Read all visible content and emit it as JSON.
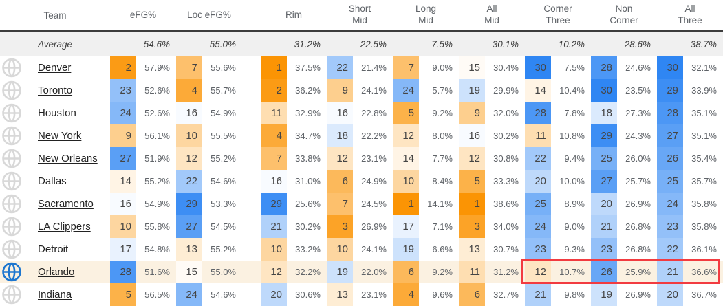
{
  "header": {
    "columns": [
      "Team",
      "eFG%",
      "Loc eFG%",
      "Rim",
      "Short\nMid",
      "Long\nMid",
      "All\nMid",
      "Corner\nThree",
      "Non\nCorner",
      "All\nThree"
    ]
  },
  "average": {
    "label": "Average",
    "values": [
      "54.6%",
      "55.0%",
      "31.2%",
      "22.5%",
      "7.5%",
      "30.1%",
      "10.2%",
      "28.6%",
      "38.7%"
    ]
  },
  "teams": [
    {
      "name": "Denver",
      "logo": "faded",
      "highlighted": false,
      "stats": [
        {
          "rank": 2,
          "pct": "57.9%"
        },
        {
          "rank": 7,
          "pct": "55.6%"
        },
        {
          "rank": 1,
          "pct": "37.5%"
        },
        {
          "rank": 22,
          "pct": "21.4%"
        },
        {
          "rank": 7,
          "pct": "9.0%"
        },
        {
          "rank": 15,
          "pct": "30.4%"
        },
        {
          "rank": 30,
          "pct": "7.5%"
        },
        {
          "rank": 28,
          "pct": "24.6%"
        },
        {
          "rank": 30,
          "pct": "32.1%"
        }
      ]
    },
    {
      "name": "Toronto",
      "logo": "faded",
      "highlighted": false,
      "stats": [
        {
          "rank": 23,
          "pct": "52.6%"
        },
        {
          "rank": 4,
          "pct": "55.7%"
        },
        {
          "rank": 2,
          "pct": "36.2%"
        },
        {
          "rank": 9,
          "pct": "24.1%"
        },
        {
          "rank": 24,
          "pct": "5.7%"
        },
        {
          "rank": 19,
          "pct": "29.9%"
        },
        {
          "rank": 14,
          "pct": "10.4%"
        },
        {
          "rank": 30,
          "pct": "23.5%"
        },
        {
          "rank": 29,
          "pct": "33.9%"
        }
      ]
    },
    {
      "name": "Houston",
      "logo": "faded",
      "highlighted": false,
      "stats": [
        {
          "rank": 24,
          "pct": "52.6%"
        },
        {
          "rank": 16,
          "pct": "54.9%"
        },
        {
          "rank": 11,
          "pct": "32.9%"
        },
        {
          "rank": 16,
          "pct": "22.8%"
        },
        {
          "rank": 5,
          "pct": "9.2%"
        },
        {
          "rank": 9,
          "pct": "32.0%"
        },
        {
          "rank": 28,
          "pct": "7.8%"
        },
        {
          "rank": 18,
          "pct": "27.3%"
        },
        {
          "rank": 28,
          "pct": "35.1%"
        }
      ]
    },
    {
      "name": "New York",
      "logo": "faded",
      "highlighted": false,
      "stats": [
        {
          "rank": 9,
          "pct": "56.1%"
        },
        {
          "rank": 10,
          "pct": "55.5%"
        },
        {
          "rank": 4,
          "pct": "34.7%"
        },
        {
          "rank": 18,
          "pct": "22.2%"
        },
        {
          "rank": 12,
          "pct": "8.0%"
        },
        {
          "rank": 16,
          "pct": "30.2%"
        },
        {
          "rank": 11,
          "pct": "10.8%"
        },
        {
          "rank": 29,
          "pct": "24.3%"
        },
        {
          "rank": 27,
          "pct": "35.1%"
        }
      ]
    },
    {
      "name": "New Orleans",
      "logo": "faded",
      "highlighted": false,
      "stats": [
        {
          "rank": 27,
          "pct": "51.9%"
        },
        {
          "rank": 12,
          "pct": "55.2%"
        },
        {
          "rank": 7,
          "pct": "33.8%"
        },
        {
          "rank": 12,
          "pct": "23.1%"
        },
        {
          "rank": 14,
          "pct": "7.7%"
        },
        {
          "rank": 12,
          "pct": "30.8%"
        },
        {
          "rank": 22,
          "pct": "9.4%"
        },
        {
          "rank": 25,
          "pct": "26.0%"
        },
        {
          "rank": 26,
          "pct": "35.4%"
        }
      ]
    },
    {
      "name": "Dallas",
      "logo": "faded",
      "highlighted": false,
      "stats": [
        {
          "rank": 14,
          "pct": "55.2%"
        },
        {
          "rank": 22,
          "pct": "54.6%"
        },
        {
          "rank": 16,
          "pct": "31.0%"
        },
        {
          "rank": 6,
          "pct": "24.9%"
        },
        {
          "rank": 10,
          "pct": "8.4%"
        },
        {
          "rank": 5,
          "pct": "33.3%"
        },
        {
          "rank": 20,
          "pct": "10.0%"
        },
        {
          "rank": 27,
          "pct": "25.7%"
        },
        {
          "rank": 25,
          "pct": "35.7%"
        }
      ]
    },
    {
      "name": "Sacramento",
      "logo": "faded",
      "highlighted": false,
      "stats": [
        {
          "rank": 16,
          "pct": "54.9%"
        },
        {
          "rank": 29,
          "pct": "53.3%"
        },
        {
          "rank": 29,
          "pct": "25.6%"
        },
        {
          "rank": 7,
          "pct": "24.5%"
        },
        {
          "rank": 1,
          "pct": "14.1%"
        },
        {
          "rank": 1,
          "pct": "38.6%"
        },
        {
          "rank": 25,
          "pct": "8.9%"
        },
        {
          "rank": 20,
          "pct": "26.9%"
        },
        {
          "rank": 24,
          "pct": "35.8%"
        }
      ]
    },
    {
      "name": "LA Clippers",
      "logo": "faded",
      "highlighted": false,
      "stats": [
        {
          "rank": 10,
          "pct": "55.8%"
        },
        {
          "rank": 27,
          "pct": "54.5%"
        },
        {
          "rank": 21,
          "pct": "30.2%"
        },
        {
          "rank": 3,
          "pct": "26.9%"
        },
        {
          "rank": 17,
          "pct": "7.1%"
        },
        {
          "rank": 3,
          "pct": "34.0%"
        },
        {
          "rank": 24,
          "pct": "9.0%"
        },
        {
          "rank": 21,
          "pct": "26.8%"
        },
        {
          "rank": 23,
          "pct": "35.8%"
        }
      ]
    },
    {
      "name": "Detroit",
      "logo": "faded",
      "highlighted": false,
      "stats": [
        {
          "rank": 17,
          "pct": "54.8%"
        },
        {
          "rank": 13,
          "pct": "55.2%"
        },
        {
          "rank": 10,
          "pct": "33.2%"
        },
        {
          "rank": 10,
          "pct": "24.1%"
        },
        {
          "rank": 19,
          "pct": "6.6%"
        },
        {
          "rank": 13,
          "pct": "30.7%"
        },
        {
          "rank": 23,
          "pct": "9.3%"
        },
        {
          "rank": 23,
          "pct": "26.8%"
        },
        {
          "rank": 22,
          "pct": "36.1%"
        }
      ]
    },
    {
      "name": "Orlando",
      "logo": "color",
      "highlighted": true,
      "boxed_stats": [
        6,
        7,
        8
      ],
      "stats": [
        {
          "rank": 28,
          "pct": "51.6%"
        },
        {
          "rank": 15,
          "pct": "55.0%"
        },
        {
          "rank": 12,
          "pct": "32.2%"
        },
        {
          "rank": 19,
          "pct": "22.0%"
        },
        {
          "rank": 6,
          "pct": "9.2%"
        },
        {
          "rank": 11,
          "pct": "31.2%"
        },
        {
          "rank": 12,
          "pct": "10.7%"
        },
        {
          "rank": 26,
          "pct": "25.9%"
        },
        {
          "rank": 21,
          "pct": "36.6%"
        }
      ]
    },
    {
      "name": "Indiana",
      "logo": "faded",
      "highlighted": false,
      "stats": [
        {
          "rank": 5,
          "pct": "56.5%"
        },
        {
          "rank": 24,
          "pct": "54.6%"
        },
        {
          "rank": 20,
          "pct": "30.6%"
        },
        {
          "rank": 13,
          "pct": "23.1%"
        },
        {
          "rank": 4,
          "pct": "9.6%"
        },
        {
          "rank": 6,
          "pct": "32.7%"
        },
        {
          "rank": 21,
          "pct": "9.8%"
        },
        {
          "rank": 19,
          "pct": "26.9%"
        },
        {
          "rank": 20,
          "pct": "36.7%"
        }
      ]
    }
  ],
  "rank_scale": {
    "best_color": "#fb9404",
    "mid_color": "#ffffff",
    "worst_color": "#2f86f3",
    "best_rank": 1,
    "worst_rank": 30,
    "midpoint": 15.5
  },
  "colors": {
    "highlight_row": "#fbf1e1",
    "highlight_box": "#f23b40",
    "average_bg": "#f0f0f0",
    "divider": "#3c3c3c",
    "header_text": "#5f6368",
    "pct_text": "#5f6368"
  }
}
